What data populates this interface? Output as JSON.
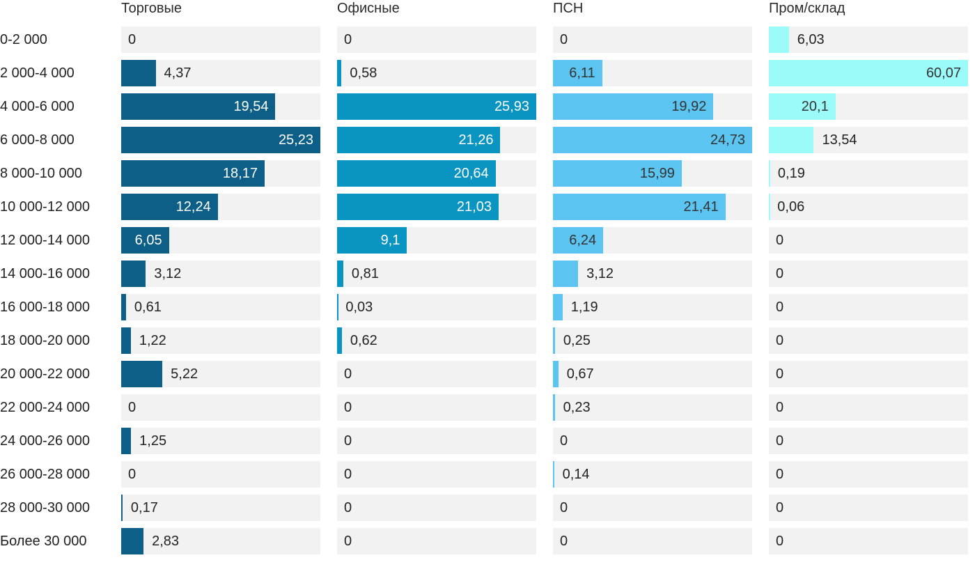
{
  "chart_data": {
    "type": "bar",
    "orientation": "horizontal",
    "title": "",
    "xlabel": "",
    "ylabel": "",
    "grid": false,
    "legend_position": "column-headers-top",
    "track_color": "#F2F2F2",
    "text_color": "#222222",
    "categories": [
      "0-2 000",
      "2 000-4 000",
      "4 000-6 000",
      "6 000-8 000",
      "8 000-10 000",
      "10 000-12 000",
      "12 000-14 000",
      "14 000-16 000",
      "16 000-18 000",
      "18 000-20 000",
      "20 000-22 000",
      "22 000-24 000",
      "24 000-26 000",
      "26 000-28 000",
      "28 000-30 000",
      "Более 30 000"
    ],
    "series": [
      {
        "name": "Торговые",
        "color": "#0D5F87",
        "inside_text_color": "#FFFFFF",
        "scale_max": 25.23,
        "values": [
          0,
          4.37,
          19.54,
          25.23,
          18.17,
          12.24,
          6.05,
          3.12,
          0.61,
          1.22,
          5.22,
          0,
          1.25,
          0,
          0.17,
          2.83
        ],
        "labels": [
          "0",
          "4,37",
          "19,54",
          "25,23",
          "18,17",
          "12,24",
          "6,05",
          "3,12",
          "0,61",
          "1,22",
          "5,22",
          "0",
          "1,25",
          "0",
          "0,17",
          "2,83"
        ]
      },
      {
        "name": "Офисные",
        "color": "#0A94C1",
        "inside_text_color": "#FFFFFF",
        "scale_max": 25.93,
        "values": [
          0,
          0.58,
          25.93,
          21.26,
          20.64,
          21.03,
          9.1,
          0.81,
          0.03,
          0.62,
          0,
          0,
          0,
          0,
          0,
          0
        ],
        "labels": [
          "0",
          "0,58",
          "25,93",
          "21,26",
          "20,64",
          "21,03",
          "9,1",
          "0,81",
          "0,03",
          "0,62",
          "0",
          "0",
          "0",
          "0",
          "0",
          "0"
        ]
      },
      {
        "name": "ПСН",
        "color": "#5BC4F0",
        "inside_text_color": "#333333",
        "scale_max": 24.73,
        "values": [
          0,
          6.11,
          19.92,
          24.73,
          15.99,
          21.41,
          6.24,
          3.12,
          1.19,
          0.25,
          0.67,
          0.23,
          0,
          0.14,
          0,
          0
        ],
        "labels": [
          "0",
          "6,11",
          "19,92",
          "24,73",
          "15,99",
          "21,41",
          "6,24",
          "3,12",
          "1,19",
          "0,25",
          "0,67",
          "0,23",
          "0",
          "0,14",
          "0",
          "0"
        ]
      },
      {
        "name": "Пром/склад",
        "color": "#9AFBF9",
        "inside_text_color": "#333333",
        "scale_max": 60.07,
        "values": [
          6.03,
          60.07,
          20.1,
          13.54,
          0.19,
          0.06,
          0,
          0,
          0,
          0,
          0,
          0,
          0,
          0,
          0,
          0
        ],
        "labels": [
          "6,03",
          "60,07",
          "20,1",
          "13,54",
          "0,19",
          "0,06",
          "0",
          "0",
          "0",
          "0",
          "0",
          "0",
          "0",
          "0",
          "0",
          "0"
        ]
      }
    ]
  }
}
